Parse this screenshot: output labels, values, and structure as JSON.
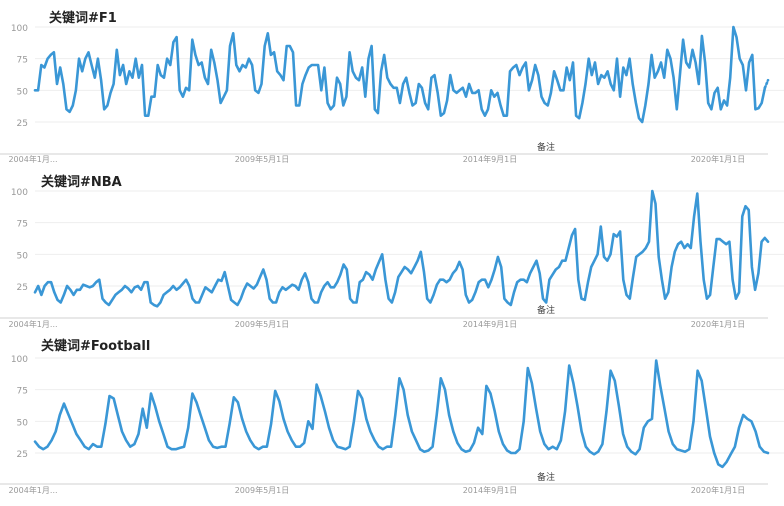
{
  "colors": {
    "line": "#3a97d6",
    "grid": "#eeeeee",
    "axis": "#d0d0d0",
    "tick": "#999999",
    "note": "#444444",
    "title": "#222222"
  },
  "chart_data": [
    {
      "type": "line",
      "title": "关键词#F1",
      "ylim": [
        0,
        100
      ],
      "yticks": [
        100,
        75,
        50,
        25
      ],
      "xtick_labels": [
        "2004年1月...",
        "2009年5月1日",
        "2014年9月1日",
        "2020年1月1日"
      ],
      "xtick_dates": [
        "2004-01",
        "2009-05",
        "2014-09",
        "2020-01"
      ],
      "annotation": "备注",
      "grid": true,
      "series": [
        {
          "start": "2004-01",
          "values": [
            50,
            50,
            70,
            68,
            75,
            78,
            80,
            55,
            68,
            55,
            35,
            33,
            38,
            50,
            75,
            65,
            75,
            80,
            70,
            60,
            75,
            58,
            35,
            38,
            48,
            55,
            82,
            62,
            70,
            55,
            65,
            60,
            75,
            60,
            70,
            30,
            30,
            45,
            45,
            70,
            62,
            60,
            75,
            70,
            88,
            92,
            50,
            45,
            52,
            50,
            90,
            78,
            70,
            72,
            60,
            55,
            82,
            72,
            58,
            40,
            45,
            50,
            85,
            95,
            70,
            65,
            70,
            68,
            75,
            70,
            50,
            48,
            55,
            85,
            95,
            78,
            80,
            65,
            62,
            58,
            85,
            85,
            80,
            38,
            38,
            55,
            62,
            68,
            70,
            70,
            70,
            50,
            68,
            40,
            35,
            38,
            60,
            55,
            38,
            45,
            80,
            65,
            60,
            58,
            68,
            45,
            75,
            85,
            35,
            32,
            65,
            78,
            60,
            55,
            52,
            52,
            40,
            55,
            60,
            48,
            38,
            40,
            55,
            52,
            40,
            35,
            60,
            62,
            48,
            30,
            32,
            42,
            62,
            50,
            48,
            50,
            52,
            45,
            55,
            48,
            48,
            50,
            35,
            30,
            35,
            50,
            45,
            48,
            38,
            30,
            30,
            65,
            68,
            70,
            62,
            68,
            72,
            50,
            58,
            70,
            62,
            45,
            40,
            38,
            48,
            65,
            58,
            50,
            50,
            68,
            58,
            72,
            30,
            28,
            40,
            55,
            75,
            62,
            72,
            55,
            62,
            60,
            65,
            55,
            50,
            75,
            45,
            68,
            62,
            75,
            55,
            40,
            28,
            25,
            38,
            55,
            78,
            60,
            65,
            72,
            60,
            82,
            75,
            60,
            35,
            62,
            90,
            72,
            68,
            82,
            72,
            55,
            93,
            72,
            40,
            35,
            48,
            52,
            35,
            42,
            38,
            60,
            100,
            92,
            75,
            70,
            50,
            72,
            78,
            35,
            36,
            40,
            52,
            58
          ]
        }
      ]
    },
    {
      "type": "line",
      "title": "关键词#NBA",
      "ylim": [
        0,
        100
      ],
      "yticks": [
        100,
        75,
        50,
        25
      ],
      "xtick_labels": [
        "2004年1月...",
        "2009年5月1日",
        "2014年9月1日",
        "2020年1月1日"
      ],
      "xtick_dates": [
        "2004-01",
        "2009-05",
        "2014-09",
        "2020-01"
      ],
      "annotation": "备注",
      "grid": true,
      "series": [
        {
          "start": "2004-01",
          "values": [
            20,
            25,
            18,
            25,
            28,
            28,
            20,
            14,
            12,
            18,
            25,
            22,
            18,
            22,
            22,
            26,
            25,
            24,
            25,
            28,
            30,
            15,
            12,
            10,
            14,
            18,
            20,
            22,
            25,
            23,
            20,
            24,
            25,
            22,
            28,
            28,
            12,
            10,
            9,
            12,
            18,
            20,
            22,
            25,
            22,
            24,
            27,
            30,
            25,
            15,
            12,
            12,
            18,
            24,
            22,
            20,
            25,
            30,
            29,
            36,
            25,
            14,
            12,
            10,
            15,
            22,
            27,
            25,
            23,
            26,
            32,
            38,
            30,
            15,
            12,
            12,
            20,
            24,
            22,
            24,
            26,
            25,
            22,
            30,
            35,
            28,
            15,
            12,
            12,
            20,
            25,
            28,
            24,
            24,
            28,
            34,
            42,
            38,
            15,
            12,
            12,
            28,
            30,
            36,
            34,
            30,
            38,
            44,
            50,
            30,
            15,
            12,
            20,
            32,
            36,
            40,
            38,
            35,
            40,
            45,
            52,
            36,
            15,
            12,
            18,
            26,
            30,
            30,
            28,
            30,
            35,
            38,
            44,
            38,
            18,
            12,
            14,
            20,
            28,
            30,
            30,
            24,
            30,
            38,
            48,
            40,
            15,
            12,
            10,
            20,
            28,
            30,
            30,
            28,
            35,
            40,
            45,
            35,
            15,
            12,
            30,
            34,
            38,
            40,
            45,
            45,
            55,
            65,
            70,
            30,
            15,
            14,
            28,
            40,
            45,
            50,
            72,
            48,
            45,
            50,
            66,
            64,
            68,
            30,
            18,
            15,
            32,
            48,
            50,
            52,
            55,
            60,
            100,
            90,
            48,
            30,
            15,
            20,
            40,
            52,
            58,
            60,
            55,
            58,
            55,
            80,
            98,
            60,
            30,
            15,
            18,
            40,
            62,
            62,
            60,
            58,
            60,
            30,
            15,
            20,
            80,
            88,
            85,
            40,
            22,
            35,
            60,
            63,
            60
          ]
        }
      ]
    },
    {
      "type": "line",
      "title": "关键词#Football",
      "ylim": [
        0,
        100
      ],
      "yticks": [
        100,
        75,
        50,
        25
      ],
      "xtick_labels": [
        "2004年1月...",
        "2009年5月1日",
        "2014年9月1日",
        "2020年1月1日"
      ],
      "xtick_dates": [
        "2004-01",
        "2009-05",
        "2014-09",
        "2020-01"
      ],
      "annotation": "备注",
      "grid": true,
      "series": [
        {
          "start": "2004-01",
          "values": [
            34,
            30,
            28,
            30,
            35,
            42,
            55,
            64,
            56,
            48,
            40,
            35,
            30,
            28,
            32,
            30,
            30,
            48,
            70,
            68,
            55,
            42,
            35,
            30,
            32,
            40,
            60,
            45,
            72,
            62,
            50,
            40,
            30,
            28,
            28,
            29,
            30,
            45,
            72,
            65,
            55,
            45,
            35,
            30,
            29,
            30,
            30,
            48,
            69,
            65,
            52,
            42,
            35,
            30,
            28,
            30,
            30,
            48,
            74,
            66,
            52,
            42,
            35,
            30,
            30,
            33,
            50,
            44,
            79,
            70,
            58,
            45,
            35,
            30,
            29,
            28,
            30,
            50,
            74,
            68,
            52,
            42,
            35,
            30,
            28,
            30,
            30,
            55,
            84,
            75,
            55,
            42,
            35,
            28,
            26,
            27,
            30,
            55,
            84,
            75,
            55,
            42,
            33,
            28,
            26,
            27,
            33,
            45,
            40,
            78,
            72,
            58,
            42,
            32,
            27,
            25,
            25,
            28,
            50,
            92,
            80,
            60,
            42,
            32,
            28,
            30,
            28,
            35,
            58,
            94,
            80,
            62,
            42,
            30,
            26,
            24,
            26,
            32,
            58,
            90,
            82,
            62,
            40,
            30,
            26,
            24,
            28,
            45,
            50,
            52,
            98,
            78,
            60,
            42,
            32,
            28,
            27,
            26,
            28,
            50,
            90,
            82,
            60,
            38,
            25,
            16,
            14,
            18,
            24,
            30,
            45,
            55,
            52,
            50,
            42,
            30,
            26,
            25
          ]
        }
      ]
    }
  ]
}
